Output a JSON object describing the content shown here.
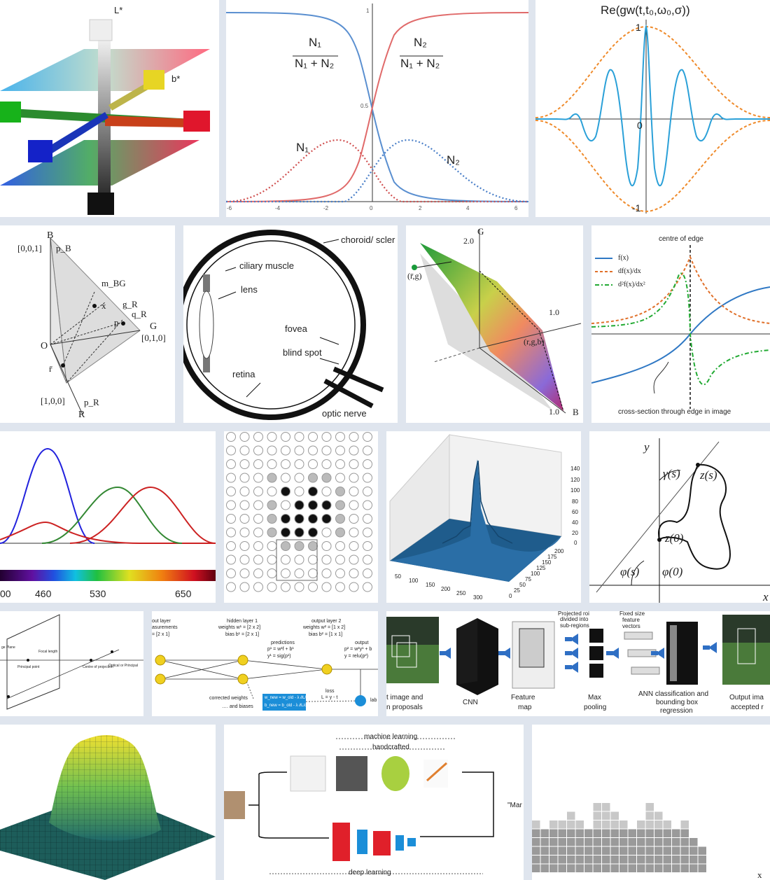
{
  "tiles": {
    "lab": {
      "l_axis": "L*",
      "b_axis": "b*"
    },
    "sigmoid": {
      "ratio_left_num": "N₁",
      "ratio_left_den": "N₁ + N₂",
      "ratio_right_num": "N₂",
      "ratio_right_den": "N₁ + N₂",
      "n1": "N₁",
      "n2": "N₂",
      "y_ticks": [
        "1",
        "0.5"
      ],
      "x_ticks": [
        "-6",
        "-4",
        "-2",
        "0",
        "2",
        "4",
        "6"
      ]
    },
    "gabor": {
      "title": "Re(gw(t,t₀,ω₀,σ))",
      "y_top": "1",
      "origin": "0",
      "y_bottom": "-1"
    },
    "rgb_triangle": {
      "b_label": "B",
      "b_coord": "[0,0,1]",
      "pb": "p_B",
      "mbg": "m_BG",
      "x": "x",
      "gr": "g_R",
      "qr": "q_R",
      "p": "p",
      "g_label": "G",
      "g_coord": "[0,1,0]",
      "o": "O",
      "rbar": "r̄",
      "r_coord": "[1,0,0]",
      "pr": "p_R",
      "r_label": "R"
    },
    "eye": {
      "choroid": "choroid/ scler",
      "ciliary": "ciliary muscle",
      "lens": "lens",
      "fovea": "fovea",
      "blind": "blind spot",
      "retina": "retina",
      "optic": "optic nerve"
    },
    "chromaticity": {
      "g_label": "G",
      "g_max": "2.0",
      "one": "1.0",
      "rg": "(r̄,g)",
      "rgb": "(r,g,b)",
      "b_one": "1.0",
      "b_label": "B"
    },
    "edge": {
      "title": "centre of edge",
      "legend": [
        "f(x)",
        "df(x)/dx",
        "d²f(x)/dx²"
      ],
      "caption": "cross-section through edge in image",
      "colors": [
        "#2f78c4",
        "#e0702a",
        "#22aa33"
      ]
    },
    "spectrum": {
      "ticks": [
        "00",
        "460",
        "530",
        "650"
      ]
    },
    "surface3d": {
      "z_ticks": [
        "140",
        "120",
        "100",
        "80",
        "60",
        "40",
        "20",
        "0"
      ],
      "x_ticks": [
        "50",
        "100",
        "150",
        "200",
        "250",
        "300"
      ],
      "y_ticks": [
        "0",
        "25",
        "50",
        "75",
        "100",
        "125",
        "150",
        "175",
        "200"
      ]
    },
    "contour": {
      "y": "y",
      "x": "x",
      "gamma": "γ(s)",
      "zs": "z(s)",
      "z0": "z(0)",
      "phis": "φ(s)",
      "phi0": "φ(0)"
    },
    "pinhole": {
      "plane": "ge Plane",
      "focal": "Focal length",
      "principal": "Principal point",
      "centre": "Centre of projection",
      "optical": "Optical or Principal"
    },
    "network": {
      "input_layer": "out layer",
      "input_meas": "asurements",
      "input_dim": "= [2 x 1]",
      "hidden_title": "hidden layer 1",
      "hidden_w": "weights w¹ = [2 x 2]",
      "hidden_b": "bias b¹ = [2 x 1]",
      "output_title": "output layer 2",
      "output_w": "weights w² = [1 x 2]",
      "output_b": "bias b² = [1 x 1]",
      "predictions": "predictions",
      "pred_eq1": "p¹ = w¹f + b¹",
      "pred_eq2": "y¹ = sig(p¹)",
      "output": "output",
      "out_eq1": "p² = w²y¹ + b",
      "out_eq2": "y = relu(p²)",
      "corrected": "corrected weights",
      "biases": "…. and biases",
      "loss": "loss",
      "loss_eq": "L = y - t",
      "lab": "lab",
      "update1": "w_new = w_old - λ ∂L/∂w",
      "update2": "b_new = b_old - λ ∂L/∂b"
    },
    "rcnn": {
      "input": "t image and",
      "proposals": "n proposals",
      "cnn": "CNN",
      "feature": "Feature",
      "map": "map",
      "proj": "Projected roi",
      "divided": "divided into",
      "sub": "sub-regions",
      "maxp": "Max",
      "pooling": "pooling",
      "fixed": "Fixed size",
      "feat": "feature",
      "vectors": "vectors",
      "ann": "ANN classification and",
      "bbox": "bounding box",
      "regression": "regression",
      "output": "Output ima",
      "accepted": "accepted r"
    },
    "ml": {
      "machine": "machine learning",
      "hand": "handcrafted",
      "deep": "deep learning",
      "quote": "\"Mar"
    },
    "blocks": {
      "x": "x"
    }
  }
}
